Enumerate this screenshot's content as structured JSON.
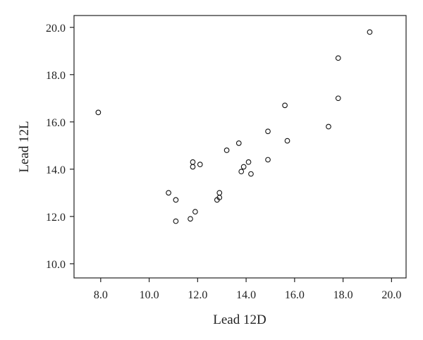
{
  "chart_data": {
    "type": "scatter",
    "xlabel": "Lead 12D",
    "ylabel": "Lead 12L",
    "xlim": [
      6.9,
      20.6
    ],
    "ylim": [
      9.4,
      20.5
    ],
    "xticks": [
      8.0,
      10.0,
      12.0,
      14.0,
      16.0,
      18.0,
      20.0
    ],
    "yticks": [
      10.0,
      12.0,
      14.0,
      16.0,
      18.0,
      20.0
    ],
    "xtick_labels": [
      "8.0",
      "10.0",
      "12.0",
      "14.0",
      "16.0",
      "18.0",
      "20.0"
    ],
    "ytick_labels": [
      "10.0",
      "12.0",
      "14.0",
      "16.0",
      "18.0",
      "20.0"
    ],
    "grid": false,
    "marker": "open-circle",
    "points": [
      {
        "x": 7.9,
        "y": 16.4
      },
      {
        "x": 10.8,
        "y": 13.0
      },
      {
        "x": 11.1,
        "y": 12.7
      },
      {
        "x": 11.1,
        "y": 11.8
      },
      {
        "x": 11.7,
        "y": 11.9
      },
      {
        "x": 11.9,
        "y": 12.2
      },
      {
        "x": 11.8,
        "y": 14.3
      },
      {
        "x": 11.8,
        "y": 14.1
      },
      {
        "x": 12.1,
        "y": 14.2
      },
      {
        "x": 12.8,
        "y": 12.7
      },
      {
        "x": 12.9,
        "y": 13.0
      },
      {
        "x": 12.9,
        "y": 12.8
      },
      {
        "x": 13.2,
        "y": 14.8
      },
      {
        "x": 13.7,
        "y": 15.1
      },
      {
        "x": 13.8,
        "y": 13.9
      },
      {
        "x": 13.9,
        "y": 14.1
      },
      {
        "x": 14.1,
        "y": 14.3
      },
      {
        "x": 14.2,
        "y": 13.8
      },
      {
        "x": 14.9,
        "y": 15.6
      },
      {
        "x": 14.9,
        "y": 14.4
      },
      {
        "x": 15.6,
        "y": 16.7
      },
      {
        "x": 15.7,
        "y": 15.2
      },
      {
        "x": 17.4,
        "y": 15.8
      },
      {
        "x": 17.8,
        "y": 18.7
      },
      {
        "x": 17.8,
        "y": 17.0
      },
      {
        "x": 19.1,
        "y": 19.8
      }
    ]
  }
}
